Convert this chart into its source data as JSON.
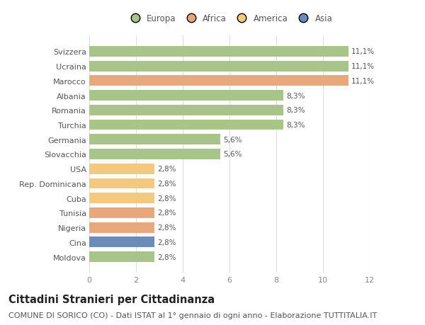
{
  "title": "Cittadini Stranieri per Cittadinanza",
  "subtitle": "COMUNE DI SORICO (CO) - Dati ISTAT al 1° gennaio di ogni anno - Elaborazione TUTTITALIA.IT",
  "categories": [
    "Moldova",
    "Cina",
    "Nigeria",
    "Tunisia",
    "Cuba",
    "Rep. Dominicana",
    "USA",
    "Slovacchia",
    "Germania",
    "Turchia",
    "Romania",
    "Albania",
    "Marocco",
    "Ucraina",
    "Svizzera"
  ],
  "values": [
    2.8,
    2.8,
    2.8,
    2.8,
    2.8,
    2.8,
    2.8,
    5.6,
    5.6,
    8.3,
    8.3,
    8.3,
    11.1,
    11.1,
    11.1
  ],
  "labels": [
    "2,8%",
    "2,8%",
    "2,8%",
    "2,8%",
    "2,8%",
    "2,8%",
    "2,8%",
    "5,6%",
    "5,6%",
    "8,3%",
    "8,3%",
    "8,3%",
    "11,1%",
    "11,1%",
    "11,1%"
  ],
  "colors": [
    "#a8c48a",
    "#6b8cba",
    "#e8a87c",
    "#e8a87c",
    "#f2c97e",
    "#f2c97e",
    "#f2c97e",
    "#a8c48a",
    "#a8c48a",
    "#a8c48a",
    "#a8c48a",
    "#a8c48a",
    "#e8a87c",
    "#a8c48a",
    "#a8c48a"
  ],
  "continent_colors": {
    "Europa": "#a8c48a",
    "Africa": "#e8a87c",
    "America": "#f2c97e",
    "Asia": "#6b8cba"
  },
  "xlim": [
    0,
    12
  ],
  "xticks": [
    0,
    2,
    4,
    6,
    8,
    10,
    12
  ],
  "background_color": "#ffffff",
  "bar_height": 0.72,
  "title_fontsize": 10.5,
  "subtitle_fontsize": 8,
  "label_fontsize": 7.5,
  "tick_fontsize": 8,
  "legend_fontsize": 8.5
}
